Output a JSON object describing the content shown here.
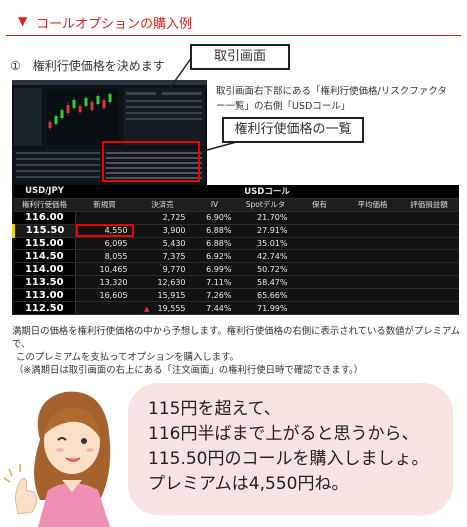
{
  "section": {
    "title": "コールオプションの購入例"
  },
  "step": {
    "number": "①",
    "title": "権利行使価格を決めます"
  },
  "callouts": {
    "trade_screen": "取引画面",
    "strike_list": "権利行使価格の一覧"
  },
  "description": "取引画面右下部にある「権利行使価格/リスクファクター一覧」の右側「USDコール」",
  "table": {
    "pair": "USD/JPY",
    "title": "USDコール",
    "headers": [
      "権利行使価格",
      "新規買",
      "決済売",
      "IV",
      "Spotデルタ",
      "保有",
      "平均価格",
      "評価損益額"
    ],
    "rows": [
      {
        "strike": "116.00",
        "new_buy": "",
        "close_sell": "2,725",
        "iv": "6.90%",
        "delta": "21.70%"
      },
      {
        "strike": "115.50",
        "new_buy": "4,550",
        "close_sell": "3,900",
        "iv": "6.88%",
        "delta": "27.91%"
      },
      {
        "strike": "115.00",
        "new_buy": "6,095",
        "close_sell": "5,430",
        "iv": "6.88%",
        "delta": "35.01%"
      },
      {
        "strike": "114.50",
        "new_buy": "8,055",
        "close_sell": "7,375",
        "iv": "6.92%",
        "delta": "42.74%"
      },
      {
        "strike": "114.00",
        "new_buy": "10,465",
        "close_sell": "9,770",
        "iv": "6.99%",
        "delta": "50.72%"
      },
      {
        "strike": "113.50",
        "new_buy": "13,320",
        "close_sell": "12,630",
        "iv": "7.11%",
        "delta": "58.47%"
      },
      {
        "strike": "113.00",
        "new_buy": "16,605",
        "close_sell": "15,915",
        "iv": "7.26%",
        "delta": "65.66%"
      },
      {
        "strike": "112.50",
        "new_buy": "",
        "close_sell": "19,555",
        "iv": "7.44%",
        "delta": "71.99%"
      }
    ]
  },
  "note": {
    "line1": "満期日の価格を権利行使価格の中から予想します。権利行使価格の右側に表示されている数値がプレミアムで、",
    "line2": "このプレミアムを支払ってオプションを購入します。",
    "line3": "（※満期日は取引画面の右上にある「注文画面」の権利行使日時で確認できます。）"
  },
  "bubble": {
    "line1": "115円を超えて、",
    "line2": "116円半ばまで上がると思うから、",
    "line3": "115.50円のコールを購入しましょ。",
    "line4": "プレミアムは4,550円ね。"
  },
  "colors": {
    "accent": "#dd2222",
    "table_bg": "#121314",
    "bubble_bg": "#f8e3e3"
  }
}
